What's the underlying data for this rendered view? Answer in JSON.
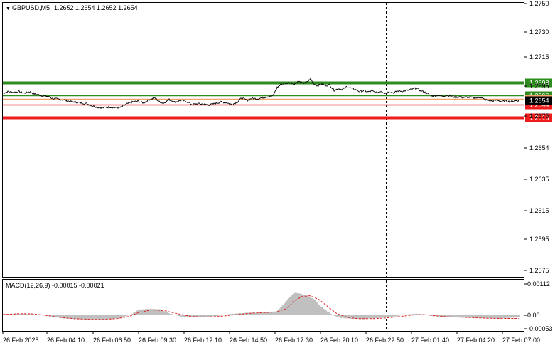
{
  "header": {
    "symbol": "GBPUSD,M5",
    "quote": "1.2652 1.2654 1.2652 1.2654"
  },
  "price_axis": {
    "ticks": [
      "1.2750",
      "1.2730",
      "1.2715",
      "1.2695",
      "1.2675",
      "1.2654",
      "1.2635",
      "1.2615",
      "1.2595",
      "1.2575"
    ]
  },
  "levels": [
    {
      "label": "1.2698",
      "value": 1.2698,
      "color": "#2e8b1f",
      "bold": true
    },
    {
      "label": "1.2666",
      "value": 1.2666,
      "color": "#2e8b1f",
      "bold": false
    },
    {
      "label": "1.2657",
      "value": 1.2657,
      "color": "#f5a26b",
      "bold": false
    },
    {
      "label": "1.2644",
      "value": 1.2644,
      "color": "#ee1c1c",
      "bold": false
    },
    {
      "label": "1.2613",
      "value": 1.2613,
      "color": "#ee1c1c",
      "bold": true
    }
  ],
  "current_price": {
    "label": "1.2654",
    "value": 1.2654
  },
  "macd": {
    "label": "MACD(12,26,9) -0.00015 -0.00021",
    "ticks": [
      "0.00112",
      "0.00",
      "-0.00053"
    ]
  },
  "time_axis": {
    "labels": [
      "26 Feb 2025",
      "26 Feb 04:10",
      "26 Feb 06:50",
      "26 Feb 09:30",
      "26 Feb 12:10",
      "26 Feb 14:50",
      "26 Feb 17:30",
      "26 Feb 20:10",
      "26 Feb 22:50",
      "27 Feb 01:40",
      "27 Feb 04:20",
      "27 Feb 07:00"
    ]
  },
  "chart_data": {
    "type": "line",
    "title": "GBPUSD,M5",
    "price_keypoints": [
      [
        0,
        1.2672
      ],
      [
        8,
        1.2676
      ],
      [
        15,
        1.2674
      ],
      [
        22,
        1.2676
      ],
      [
        30,
        1.2672
      ],
      [
        38,
        1.2676
      ],
      [
        44,
        1.267
      ],
      [
        50,
        1.2668
      ],
      [
        56,
        1.2665
      ],
      [
        63,
        1.2664
      ],
      [
        70,
        1.2659
      ],
      [
        78,
        1.2657
      ],
      [
        86,
        1.2655
      ],
      [
        94,
        1.2652
      ],
      [
        102,
        1.265
      ],
      [
        110,
        1.2648
      ],
      [
        118,
        1.2646
      ],
      [
        126,
        1.2641
      ],
      [
        134,
        1.2637
      ],
      [
        142,
        1.2636
      ],
      [
        150,
        1.2638
      ],
      [
        158,
        1.2636
      ],
      [
        166,
        1.2637
      ],
      [
        174,
        1.2645
      ],
      [
        182,
        1.265
      ],
      [
        190,
        1.2652
      ],
      [
        198,
        1.2648
      ],
      [
        206,
        1.2656
      ],
      [
        214,
        1.266
      ],
      [
        220,
        1.2651
      ],
      [
        226,
        1.2647
      ],
      [
        234,
        1.2656
      ],
      [
        242,
        1.265
      ],
      [
        250,
        1.2654
      ],
      [
        258,
        1.2652
      ],
      [
        266,
        1.2644
      ],
      [
        274,
        1.2646
      ],
      [
        282,
        1.2645
      ],
      [
        290,
        1.2643
      ],
      [
        298,
        1.2646
      ],
      [
        306,
        1.265
      ],
      [
        314,
        1.2649
      ],
      [
        322,
        1.2644
      ],
      [
        330,
        1.265
      ],
      [
        336,
        1.266
      ],
      [
        344,
        1.2654
      ],
      [
        350,
        1.2659
      ],
      [
        358,
        1.2658
      ],
      [
        366,
        1.2661
      ],
      [
        374,
        1.2664
      ],
      [
        380,
        1.2665
      ],
      [
        386,
        1.2686
      ],
      [
        392,
        1.2694
      ],
      [
        398,
        1.2696
      ],
      [
        404,
        1.2698
      ],
      [
        410,
        1.2694
      ],
      [
        416,
        1.2701
      ],
      [
        422,
        1.2696
      ],
      [
        428,
        1.2699
      ],
      [
        433,
        1.2707
      ],
      [
        437,
        1.2696
      ],
      [
        442,
        1.269
      ],
      [
        448,
        1.2694
      ],
      [
        454,
        1.2691
      ],
      [
        460,
        1.2692
      ],
      [
        466,
        1.2679
      ],
      [
        472,
        1.2683
      ],
      [
        478,
        1.2681
      ],
      [
        484,
        1.2688
      ],
      [
        490,
        1.2684
      ],
      [
        496,
        1.2681
      ],
      [
        502,
        1.2676
      ],
      [
        508,
        1.2678
      ],
      [
        514,
        1.2675
      ],
      [
        520,
        1.2677
      ],
      [
        526,
        1.2673
      ],
      [
        532,
        1.2677
      ],
      [
        538,
        1.2672
      ],
      [
        544,
        1.2675
      ],
      [
        550,
        1.2673
      ],
      [
        556,
        1.2677
      ],
      [
        562,
        1.2677
      ],
      [
        570,
        1.2679
      ],
      [
        576,
        1.2682
      ],
      [
        582,
        1.2684
      ],
      [
        588,
        1.2678
      ],
      [
        594,
        1.2674
      ],
      [
        600,
        1.2668
      ],
      [
        606,
        1.2664
      ],
      [
        612,
        1.2667
      ],
      [
        618,
        1.2664
      ],
      [
        624,
        1.2667
      ],
      [
        630,
        1.2665
      ],
      [
        636,
        1.2662
      ],
      [
        642,
        1.2663
      ],
      [
        648,
        1.2661
      ],
      [
        654,
        1.2662
      ],
      [
        660,
        1.2661
      ],
      [
        666,
        1.266
      ],
      [
        672,
        1.2662
      ],
      [
        678,
        1.2656
      ],
      [
        684,
        1.2654
      ],
      [
        690,
        1.2653
      ],
      [
        696,
        1.2655
      ],
      [
        702,
        1.2651
      ],
      [
        708,
        1.2653
      ],
      [
        714,
        1.2651
      ],
      [
        720,
        1.2653
      ],
      [
        727,
        1.2654
      ]
    ],
    "macd_histogram_keypoints": [
      [
        0,
        2e-05
      ],
      [
        20,
        5e-05
      ],
      [
        40,
        4e-05
      ],
      [
        55,
        -2e-05
      ],
      [
        70,
        -0.00012
      ],
      [
        90,
        -0.00022
      ],
      [
        110,
        -0.00025
      ],
      [
        130,
        -0.00026
      ],
      [
        150,
        -0.00025
      ],
      [
        165,
        -0.00018
      ],
      [
        180,
        0.0
      ],
      [
        190,
        0.00025
      ],
      [
        205,
        0.0003
      ],
      [
        220,
        0.00028
      ],
      [
        235,
        5e-05
      ],
      [
        250,
        -0.0001
      ],
      [
        270,
        -0.00014
      ],
      [
        290,
        -0.00012
      ],
      [
        305,
        -6e-05
      ],
      [
        320,
        3e-05
      ],
      [
        335,
        8e-05
      ],
      [
        350,
        0.0001
      ],
      [
        370,
        0.00012
      ],
      [
        385,
        0.00018
      ],
      [
        395,
        0.00055
      ],
      [
        402,
        0.0009
      ],
      [
        410,
        0.00115
      ],
      [
        418,
        0.00112
      ],
      [
        428,
        0.001
      ],
      [
        438,
        0.0008
      ],
      [
        445,
        0.0005
      ],
      [
        455,
        0.0002
      ],
      [
        465,
        -5e-05
      ],
      [
        475,
        -0.00018
      ],
      [
        490,
        -0.00022
      ],
      [
        505,
        -0.00024
      ],
      [
        520,
        -0.0002
      ],
      [
        540,
        -0.00015
      ],
      [
        555,
        -8e-05
      ],
      [
        570,
        2e-05
      ],
      [
        585,
        4e-05
      ],
      [
        600,
        -5e-05
      ],
      [
        615,
        -0.00012
      ],
      [
        635,
        -0.00014
      ],
      [
        655,
        -0.00016
      ],
      [
        675,
        -0.0002
      ],
      [
        695,
        -0.00022
      ],
      [
        710,
        -0.00018
      ],
      [
        727,
        -0.00015
      ]
    ],
    "macd_signal_keypoints": [
      [
        0,
        0.0
      ],
      [
        20,
        4e-05
      ],
      [
        40,
        4e-05
      ],
      [
        60,
        -4e-05
      ],
      [
        80,
        -0.00015
      ],
      [
        100,
        -0.00022
      ],
      [
        120,
        -0.00025
      ],
      [
        140,
        -0.00026
      ],
      [
        160,
        -0.00022
      ],
      [
        178,
        -0.0001
      ],
      [
        192,
        0.00012
      ],
      [
        210,
        0.00025
      ],
      [
        228,
        0.0002
      ],
      [
        245,
        5e-05
      ],
      [
        265,
        -0.0001
      ],
      [
        285,
        -0.00013
      ],
      [
        305,
        -0.0001
      ],
      [
        325,
        -2e-05
      ],
      [
        345,
        6e-05
      ],
      [
        365,
        0.0001
      ],
      [
        385,
        0.00014
      ],
      [
        398,
        0.0003
      ],
      [
        410,
        0.0007
      ],
      [
        420,
        0.00095
      ],
      [
        432,
        0.001
      ],
      [
        445,
        0.0008
      ],
      [
        458,
        0.0004
      ],
      [
        470,
        5e-05
      ],
      [
        485,
        -0.00015
      ],
      [
        500,
        -0.00022
      ],
      [
        520,
        -0.00022
      ],
      [
        540,
        -0.00018
      ],
      [
        560,
        -0.0001
      ],
      [
        578,
        -2e-05
      ],
      [
        592,
        0.0
      ],
      [
        608,
        -6e-05
      ],
      [
        625,
        -0.00012
      ],
      [
        645,
        -0.00014
      ],
      [
        665,
        -0.00017
      ],
      [
        685,
        -0.0002
      ],
      [
        705,
        -0.00021
      ],
      [
        727,
        -0.00021
      ]
    ]
  }
}
